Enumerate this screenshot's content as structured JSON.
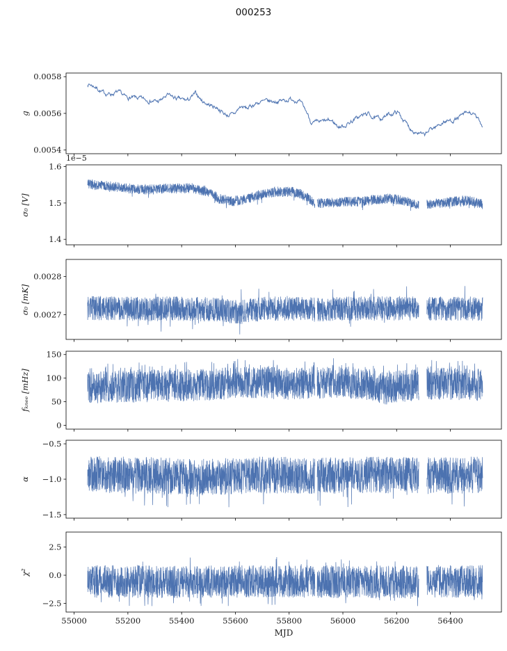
{
  "chart_data": {
    "type": "line",
    "title": "000253",
    "xlabel": "MJD",
    "line_color": "#4c72b0",
    "spine_color": "#000000",
    "xlim": [
      54970,
      56590
    ],
    "x_data_range": [
      55050,
      56520
    ],
    "x_ticks": [
      {
        "value": 55000,
        "label": "55000"
      },
      {
        "value": 55200,
        "label": "55200"
      },
      {
        "value": 55400,
        "label": "55400"
      },
      {
        "value": 55600,
        "label": "55600"
      },
      {
        "value": 55800,
        "label": "55800"
      },
      {
        "value": 56000,
        "label": "56000"
      },
      {
        "value": 56200,
        "label": "56200"
      },
      {
        "value": 56400,
        "label": "56400"
      }
    ],
    "gaps": [
      [
        55896,
        55904
      ],
      [
        56283,
        56312
      ]
    ],
    "subplots": [
      {
        "name": "g",
        "ylabel": "g",
        "offset_text": "",
        "ylim": [
          0.00538,
          0.00582
        ],
        "y_ticks": [
          {
            "value": 0.0054,
            "label": "0.0054"
          },
          {
            "value": 0.0056,
            "label": "0.0056"
          },
          {
            "value": 0.0058,
            "label": "0.0058"
          }
        ],
        "style": "walk",
        "seed": 7,
        "mean_reversion": 0.25,
        "noise_amp": 8e-06,
        "use_gaps": false,
        "keypoints": [
          [
            55050,
            0.00576
          ],
          [
            55075,
            0.005745
          ],
          [
            55100,
            0.005712
          ],
          [
            55130,
            0.005705
          ],
          [
            55160,
            0.005715
          ],
          [
            55190,
            0.005685
          ],
          [
            55230,
            0.005683
          ],
          [
            55270,
            0.005672
          ],
          [
            55310,
            0.005663
          ],
          [
            55345,
            0.0057
          ],
          [
            55380,
            0.005678
          ],
          [
            55420,
            0.00567
          ],
          [
            55450,
            0.005712
          ],
          [
            55470,
            0.005668
          ],
          [
            55500,
            0.005645
          ],
          [
            55530,
            0.00563
          ],
          [
            55560,
            0.00559
          ],
          [
            55590,
            0.005592
          ],
          [
            55615,
            0.00564
          ],
          [
            55640,
            0.005625
          ],
          [
            55670,
            0.005655
          ],
          [
            55705,
            0.005665
          ],
          [
            55740,
            0.005665
          ],
          [
            55775,
            0.00567
          ],
          [
            55810,
            0.00568
          ],
          [
            55835,
            0.005662
          ],
          [
            55860,
            0.00561
          ],
          [
            55880,
            0.005543
          ],
          [
            55905,
            0.00555
          ],
          [
            55930,
            0.005557
          ],
          [
            55955,
            0.00556
          ],
          [
            55980,
            0.005524
          ],
          [
            56005,
            0.005535
          ],
          [
            56030,
            0.00556
          ],
          [
            56060,
            0.005585
          ],
          [
            56090,
            0.0056
          ],
          [
            56115,
            0.00557
          ],
          [
            56140,
            0.005575
          ],
          [
            56170,
            0.005595
          ],
          [
            56200,
            0.00561
          ],
          [
            56225,
            0.005555
          ],
          [
            56250,
            0.005512
          ],
          [
            56275,
            0.005495
          ],
          [
            56300,
            0.005475
          ],
          [
            56320,
            0.005515
          ],
          [
            56345,
            0.00553
          ],
          [
            56370,
            0.005555
          ],
          [
            56395,
            0.00556
          ],
          [
            56420,
            0.00557
          ],
          [
            56445,
            0.005595
          ],
          [
            56470,
            0.005605
          ],
          [
            56495,
            0.005575
          ],
          [
            56520,
            0.00552
          ]
        ]
      },
      {
        "name": "sigma0-v",
        "ylabel": "σ₀ [V]",
        "offset_text": "1e−5",
        "ylim": [
          1.385,
          1.605
        ],
        "y_ticks": [
          {
            "value": 1.4,
            "label": "1.4"
          },
          {
            "value": 1.5,
            "label": "1.5"
          },
          {
            "value": 1.6,
            "label": "1.6"
          }
        ],
        "style": "band",
        "seed": 21,
        "amp": 0.014,
        "spike_prob": 0.01,
        "spike_mult": 1.8,
        "spike_dir": -1,
        "clamp": [
          1.44,
          1.595
        ],
        "use_gaps": true,
        "keypoints": [
          [
            55050,
            1.553
          ],
          [
            55120,
            1.547
          ],
          [
            55200,
            1.54
          ],
          [
            55280,
            1.537
          ],
          [
            55360,
            1.54
          ],
          [
            55440,
            1.541
          ],
          [
            55500,
            1.531
          ],
          [
            55540,
            1.512
          ],
          [
            55590,
            1.505
          ],
          [
            55640,
            1.51
          ],
          [
            55700,
            1.525
          ],
          [
            55760,
            1.532
          ],
          [
            55820,
            1.53
          ],
          [
            55860,
            1.519
          ],
          [
            55900,
            1.498
          ],
          [
            55940,
            1.502
          ],
          [
            56000,
            1.504
          ],
          [
            56060,
            1.504
          ],
          [
            56120,
            1.509
          ],
          [
            56170,
            1.513
          ],
          [
            56220,
            1.508
          ],
          [
            56260,
            1.5
          ],
          [
            56300,
            1.495
          ],
          [
            56360,
            1.499
          ],
          [
            56420,
            1.505
          ],
          [
            56470,
            1.507
          ],
          [
            56520,
            1.497
          ]
        ]
      },
      {
        "name": "sigma0-mk",
        "ylabel": "σ₀ [mK]",
        "offset_text": "",
        "ylim": [
          0.002635,
          0.002845
        ],
        "y_ticks": [
          {
            "value": 0.0027,
            "label": "0.0027"
          },
          {
            "value": 0.0028,
            "label": "0.0028"
          }
        ],
        "style": "band",
        "seed": 33,
        "amp": 3.2e-05,
        "spike_prob": 0.012,
        "spike_mult": 1.9,
        "spike_dir": 0,
        "clamp": [
          0.002648,
          0.002802
        ],
        "use_gaps": true,
        "keypoints": [
          [
            55050,
            0.002717
          ],
          [
            55150,
            0.002717
          ],
          [
            55250,
            0.002714
          ],
          [
            55350,
            0.002716
          ],
          [
            55450,
            0.002715
          ],
          [
            55550,
            0.002712
          ],
          [
            55620,
            0.002706
          ],
          [
            55700,
            0.002716
          ],
          [
            55800,
            0.002716
          ],
          [
            55900,
            0.002713
          ],
          [
            56000,
            0.002716
          ],
          [
            56100,
            0.002716
          ],
          [
            56200,
            0.002717
          ],
          [
            56300,
            0.002716
          ],
          [
            56400,
            0.002716
          ],
          [
            56520,
            0.002716
          ]
        ]
      },
      {
        "name": "fknee",
        "ylabel": "fₖₙₑₑ [mHz]",
        "offset_text": "",
        "ylim": [
          -8,
          157
        ],
        "y_ticks": [
          {
            "value": 0,
            "label": "0"
          },
          {
            "value": 50,
            "label": "50"
          },
          {
            "value": 100,
            "label": "100"
          },
          {
            "value": 150,
            "label": "150"
          }
        ],
        "style": "band",
        "seed": 45,
        "amp": 34,
        "spike_prob": 0.02,
        "spike_mult": 1.5,
        "spike_dir": 1,
        "clamp": [
          30,
          152
        ],
        "use_gaps": true,
        "keypoints": [
          [
            55050,
            80
          ],
          [
            55200,
            82
          ],
          [
            55350,
            84
          ],
          [
            55500,
            86
          ],
          [
            55650,
            92
          ],
          [
            55800,
            88
          ],
          [
            55900,
            90
          ],
          [
            56000,
            92
          ],
          [
            56100,
            86
          ],
          [
            56160,
            78
          ],
          [
            56240,
            84
          ],
          [
            56320,
            88
          ],
          [
            56420,
            88
          ],
          [
            56520,
            85
          ]
        ]
      },
      {
        "name": "alpha",
        "ylabel": "α",
        "offset_text": "",
        "ylim": [
          -1.55,
          -0.45
        ],
        "y_ticks": [
          {
            "value": -1.5,
            "label": "−1.5"
          },
          {
            "value": -1.0,
            "label": "−1.0"
          },
          {
            "value": -0.5,
            "label": "−0.5"
          }
        ],
        "style": "band",
        "seed": 57,
        "amp": 0.26,
        "spike_prob": 0.012,
        "spike_mult": 1.8,
        "spike_dir": -1,
        "clamp": [
          -1.5,
          -0.58
        ],
        "use_gaps": true,
        "keypoints": [
          [
            55050,
            -0.93
          ],
          [
            55300,
            -0.95
          ],
          [
            55500,
            -0.97
          ],
          [
            55700,
            -0.94
          ],
          [
            55900,
            -0.95
          ],
          [
            56100,
            -0.94
          ],
          [
            56300,
            -0.95
          ],
          [
            56520,
            -0.94
          ]
        ]
      },
      {
        "name": "chi2",
        "ylabel": "χ²",
        "offset_text": "",
        "ylim": [
          -3.27,
          3.83
        ],
        "y_ticks": [
          {
            "value": -2.5,
            "label": "−2.5"
          },
          {
            "value": 0.0,
            "label": "0.0"
          },
          {
            "value": 2.5,
            "label": "2.5"
          }
        ],
        "style": "band",
        "seed": 69,
        "amp": 1.45,
        "spike_prob": 0.02,
        "spike_mult": 1.5,
        "spike_dir": 0,
        "clamp": [
          -3.1,
          2.8
        ],
        "use_gaps": true,
        "keypoints": [
          [
            55050,
            -0.55
          ],
          [
            55400,
            -0.6
          ],
          [
            55800,
            -0.55
          ],
          [
            56200,
            -0.6
          ],
          [
            56520,
            -0.55
          ]
        ]
      }
    ]
  }
}
